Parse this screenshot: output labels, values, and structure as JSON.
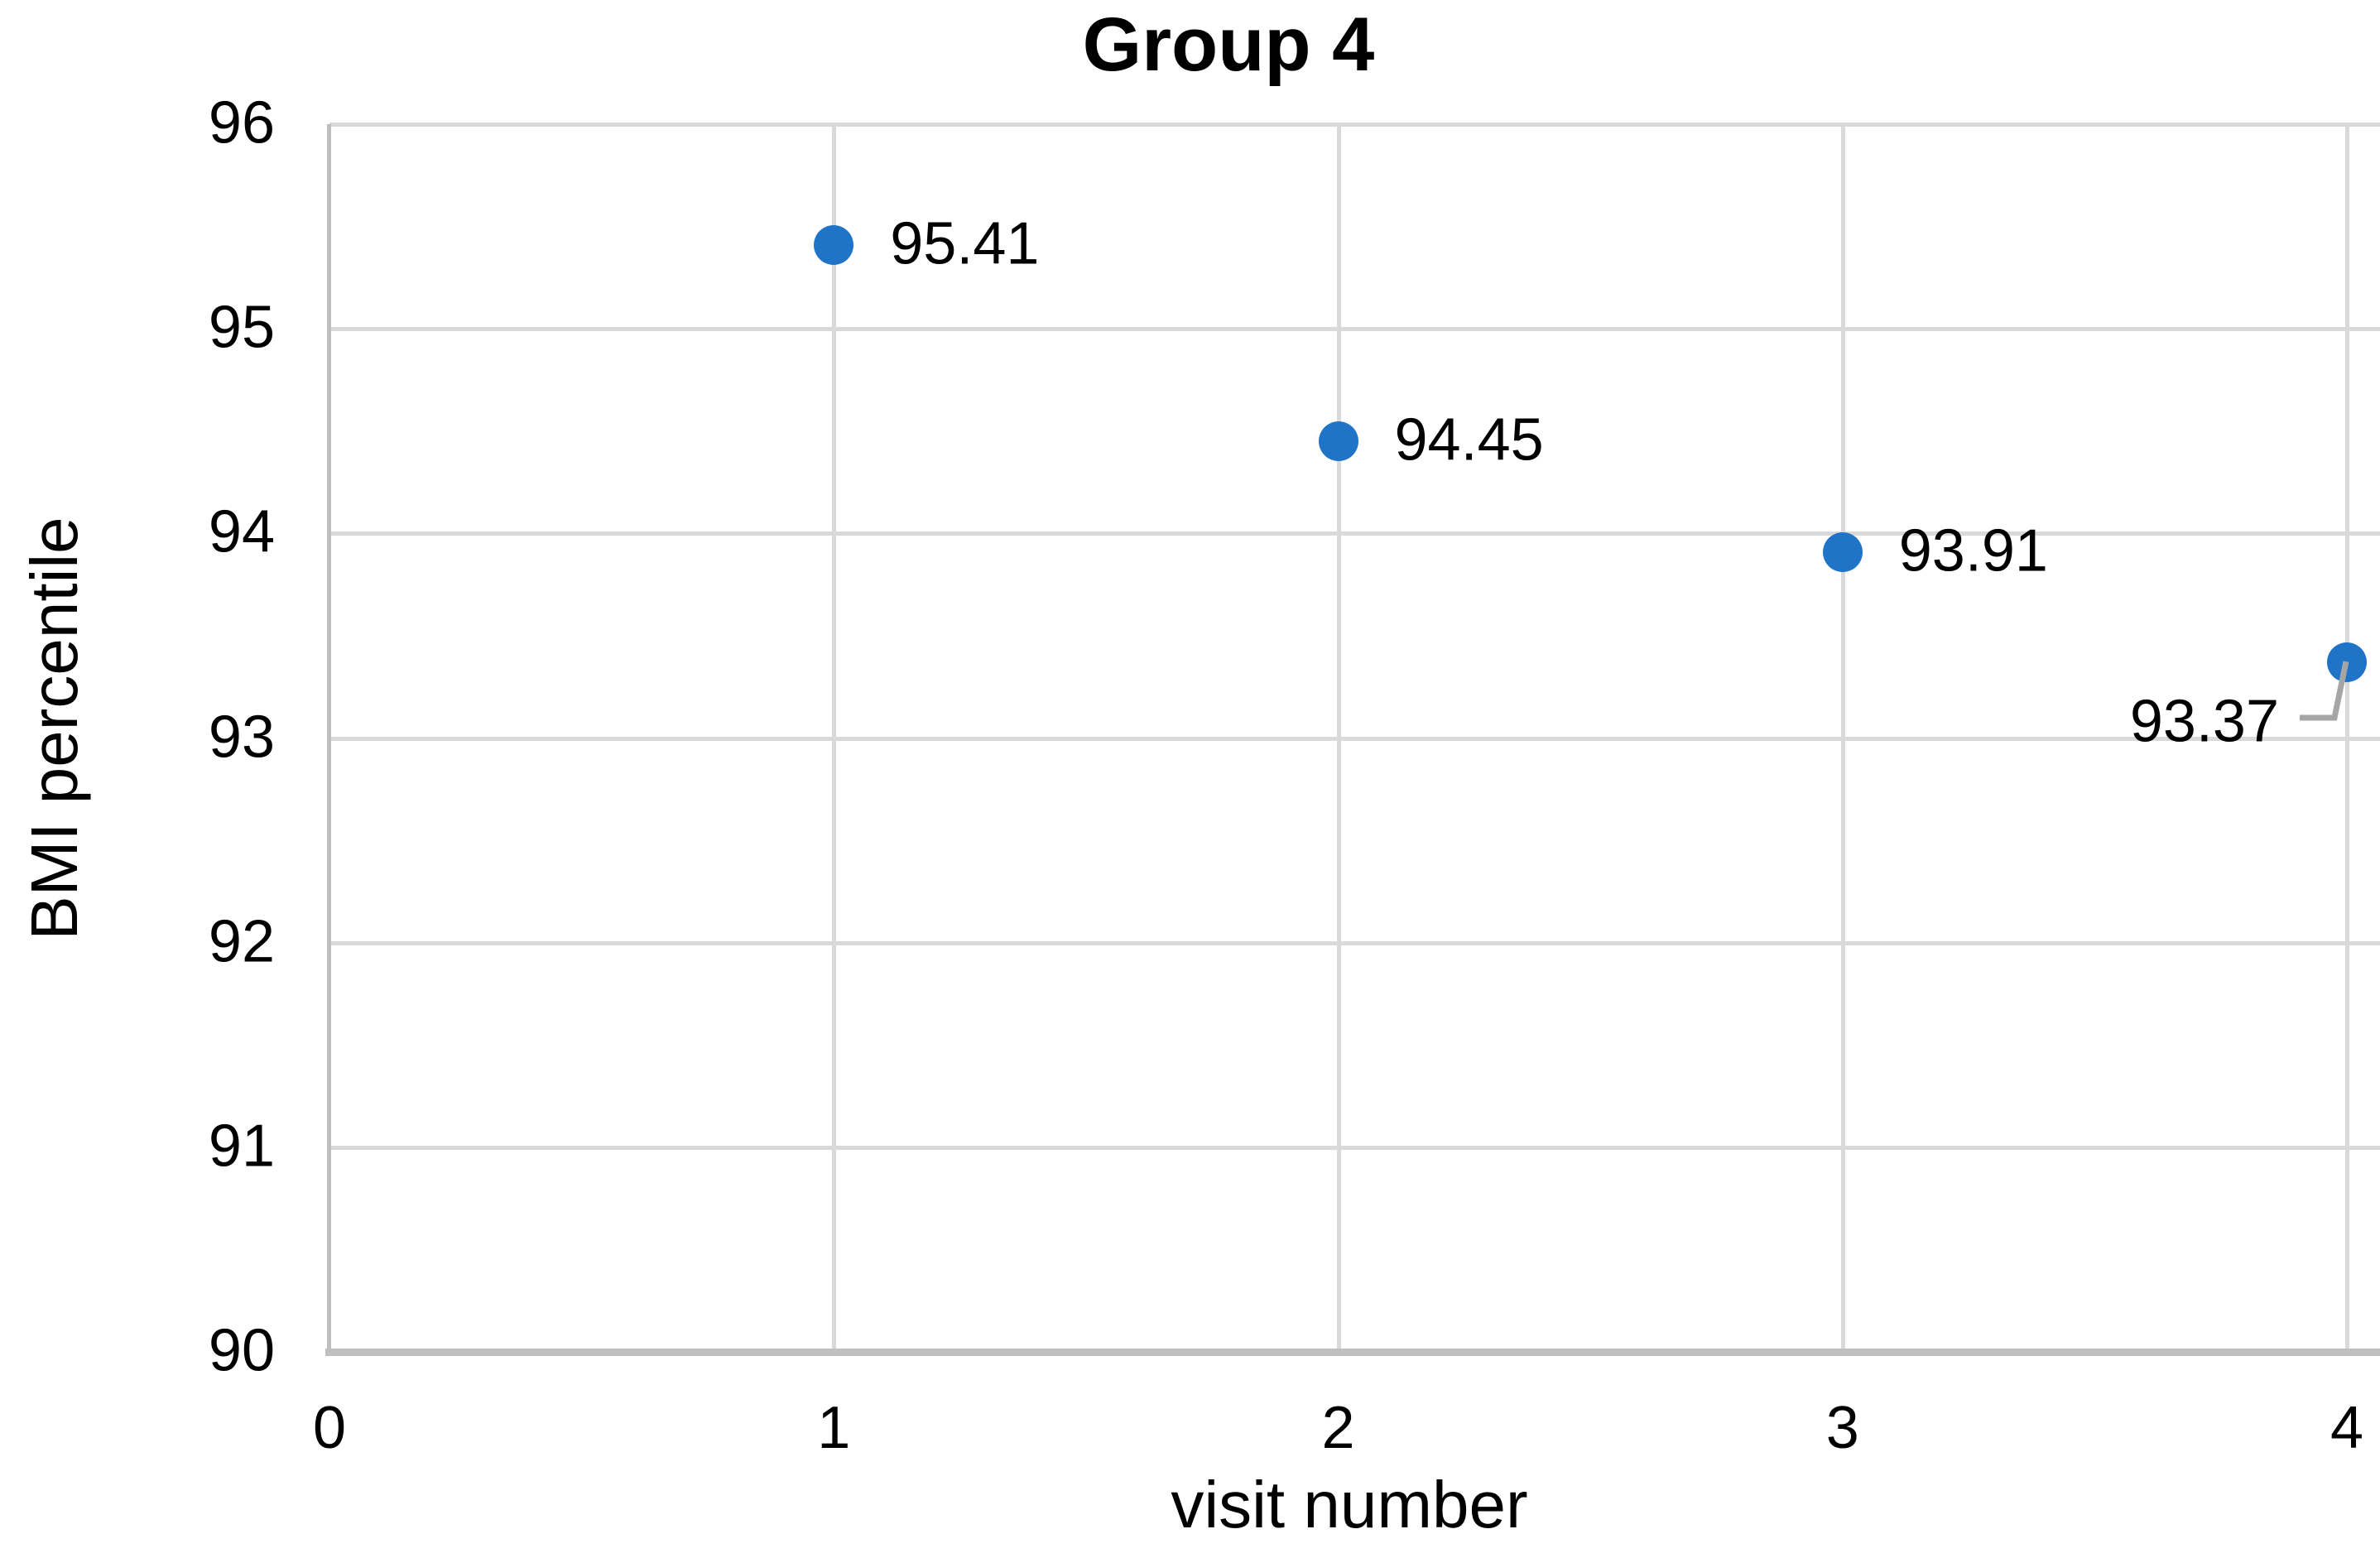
{
  "chart_data": {
    "type": "scatter",
    "title": "Group 4",
    "xlabel": "visit number",
    "ylabel": "BMI percentile",
    "x": [
      1,
      2,
      3,
      4
    ],
    "y": [
      95.41,
      94.45,
      93.91,
      93.37
    ],
    "point_labels": [
      "95.41",
      "94.45",
      "93.91",
      "93.37"
    ],
    "label_placements": [
      "right",
      "right",
      "right",
      "leader-below-left"
    ],
    "xlim": [
      0,
      4
    ],
    "ylim": [
      90,
      96
    ],
    "x_ticks": [
      "0",
      "1",
      "2",
      "3",
      "4"
    ],
    "y_ticks": [
      "96",
      "95",
      "94",
      "93",
      "92",
      "91",
      "90"
    ],
    "grid": true,
    "legend": "none",
    "marker_color": "#2074C8",
    "gridline_color": "#D9D9D9",
    "axis_line_color": "#BFBFBF",
    "leader_line_color": "#A6A6A6",
    "text_color": "#000000"
  }
}
